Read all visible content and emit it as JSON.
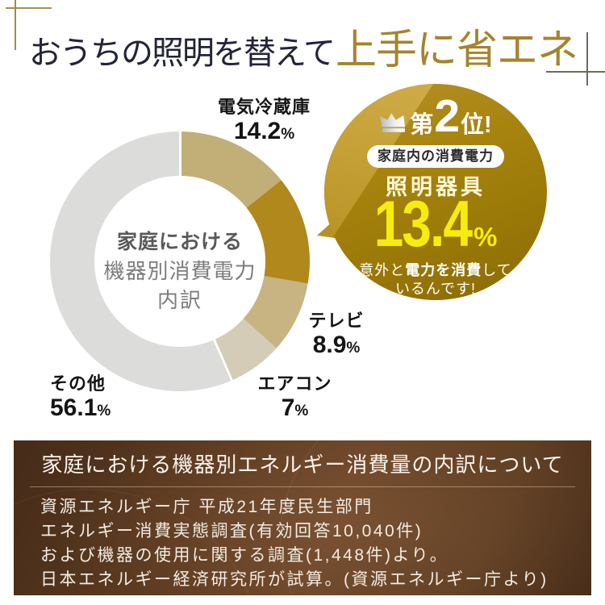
{
  "header": {
    "title_dark": "おうちの照明を替えて",
    "title_gold": "上手に省エネ",
    "color_dark": "#23233a",
    "color_gold": "#a5842c"
  },
  "chart_data": {
    "type": "pie",
    "variant": "donut",
    "center_title_lines": [
      "家庭における",
      "機器別消費電力",
      "内訳"
    ],
    "unit": "%",
    "start_angle_deg": 0,
    "direction": "clockwise",
    "segments": [
      {
        "label": "電気冷蔵庫",
        "value": 14.2,
        "color": "#c2ae77"
      },
      {
        "label": "照明器具",
        "value": 13.4,
        "color": "#b0881b",
        "highlighted": true
      },
      {
        "label": "テレビ",
        "value": 8.9,
        "color": "#c8b383"
      },
      {
        "label": "エアコン",
        "value": 7,
        "color": "#d4ccb6"
      },
      {
        "label": "その他",
        "value": 56.1,
        "color": "#dcdcda"
      }
    ],
    "divider_angles_deg": [
      0,
      156.6
    ],
    "divider_color": "#ffffff",
    "legend_position": "around",
    "grid": false
  },
  "badge": {
    "rank_prefix": "第",
    "rank_number": "2",
    "rank_suffix": "位!",
    "pill_label": "家庭内の消費電力",
    "item_label": "照明器具",
    "value": "13.4",
    "unit": "%",
    "note_pre": "意外と",
    "note_bold": "電力を消費",
    "note_post": "して",
    "note_line2": "いるんです!",
    "value_color": "#f6ec10",
    "gold_light": "#cda943",
    "gold_mid": "#a8840f",
    "gold_dark": "#8a6a05"
  },
  "source_box": {
    "title": "家庭における機器別エネルギー消費量の内訳について",
    "lines": [
      "資源エネルギー庁 平成21年度民生部門",
      "エネルギー消費実態調査(有効回答10,040件)",
      "および機器の使用に関する調査(1,448件)より。",
      "日本エネルギー経済研究所が試算。(資源エネルギー庁より)"
    ],
    "bg_color": "#5d3c23",
    "text_color": "#f2ece4"
  }
}
